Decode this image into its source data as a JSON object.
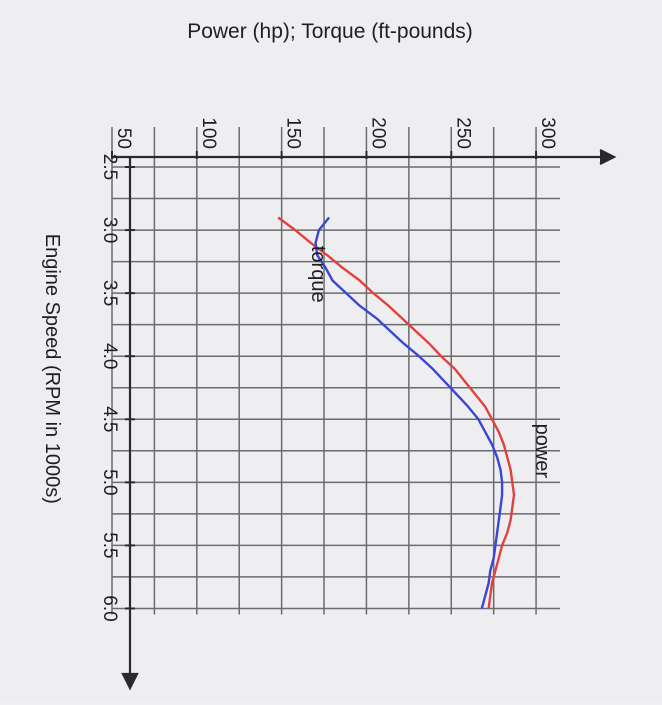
{
  "chart_data": {
    "type": "line",
    "title": "",
    "ylabel": "Power (hp); Torque (ft-pounds)",
    "xlabel": "Engine Speed (RPM in 1000s)",
    "xlim": [
      2.5,
      6.25
    ],
    "ylim": [
      50,
      320
    ],
    "x_ticks": [
      "2.5",
      "3.0",
      "3.5",
      "4.0",
      "4.5",
      "5.0",
      "5.5",
      "6.0"
    ],
    "y_ticks": [
      "50",
      "100",
      "150",
      "200",
      "250",
      "300"
    ],
    "grid": true,
    "series": [
      {
        "name": "power",
        "label_at": [
          4.75,
          300
        ],
        "color": "#e0433f",
        "x": [
          2.9,
          3.0,
          3.1,
          3.2,
          3.3,
          3.4,
          3.5,
          3.6,
          3.7,
          3.8,
          3.9,
          4.0,
          4.1,
          4.2,
          4.3,
          4.4,
          4.5,
          4.6,
          4.7,
          4.8,
          4.9,
          5.0,
          5.1,
          5.2,
          5.3,
          5.4,
          5.5,
          5.6,
          5.7,
          5.8,
          5.9,
          6.0
        ],
        "values": [
          148,
          158,
          167,
          177,
          186,
          196,
          204,
          213,
          221,
          229,
          237,
          244,
          252,
          258,
          264,
          270,
          274,
          278,
          281,
          283,
          285,
          286,
          287,
          286,
          285,
          283,
          280,
          278,
          276,
          274,
          273,
          272
        ]
      },
      {
        "name": "torque",
        "label_at": [
          3.35,
          168
        ],
        "color": "#3c46d6",
        "x": [
          2.9,
          3.0,
          3.1,
          3.2,
          3.3,
          3.4,
          3.5,
          3.6,
          3.7,
          3.8,
          3.9,
          4.0,
          4.1,
          4.2,
          4.3,
          4.4,
          4.5,
          4.6,
          4.7,
          4.8,
          4.9,
          5.0,
          5.1,
          5.2,
          5.3,
          5.4,
          5.5,
          5.6,
          5.7,
          5.8,
          5.9,
          6.0
        ],
        "values": [
          178,
          172,
          170,
          171,
          176,
          180,
          188,
          196,
          206,
          214,
          222,
          231,
          239,
          246,
          253,
          260,
          266,
          270,
          274,
          277,
          279,
          280,
          280,
          279,
          278,
          277,
          276,
          275,
          273,
          272,
          270,
          268
        ]
      }
    ]
  }
}
